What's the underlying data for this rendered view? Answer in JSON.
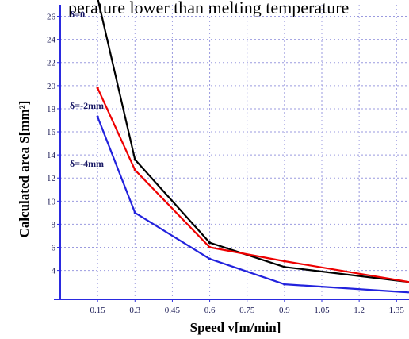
{
  "header_text": "perature lower than melting temperature",
  "chart_data": {
    "type": "line",
    "xlabel": "Speed  v[m/min]",
    "ylabel": "Calculated area S[mm²]",
    "x_ticks": [
      "0.15",
      "0.3",
      "0.45",
      "0.6",
      "0.75",
      "0.9",
      "1.05",
      "1.2",
      "1.35"
    ],
    "y_ticks": [
      "4",
      "6",
      "8",
      "10",
      "12",
      "14",
      "16",
      "18",
      "20",
      "22",
      "24",
      "26"
    ],
    "xlim": [
      0,
      1.4
    ],
    "ylim": [
      1.5,
      27
    ],
    "grid": true,
    "series": [
      {
        "name": "δ=0",
        "color": "#000000",
        "x": [
          0.15,
          0.3,
          0.6,
          0.9,
          1.4
        ],
        "y": [
          27.6,
          13.6,
          6.4,
          4.3,
          3.0
        ]
      },
      {
        "name": "δ=-2mm",
        "color": "#ee0000",
        "x": [
          0.15,
          0.3,
          0.6,
          0.9,
          1.4
        ],
        "y": [
          19.8,
          12.7,
          6.0,
          4.8,
          3.0
        ]
      },
      {
        "name": "δ=-4mm",
        "color": "#2222dd",
        "x": [
          0.15,
          0.3,
          0.6,
          0.9,
          1.4
        ],
        "y": [
          17.3,
          9.0,
          5.0,
          2.8,
          2.1
        ]
      }
    ]
  }
}
